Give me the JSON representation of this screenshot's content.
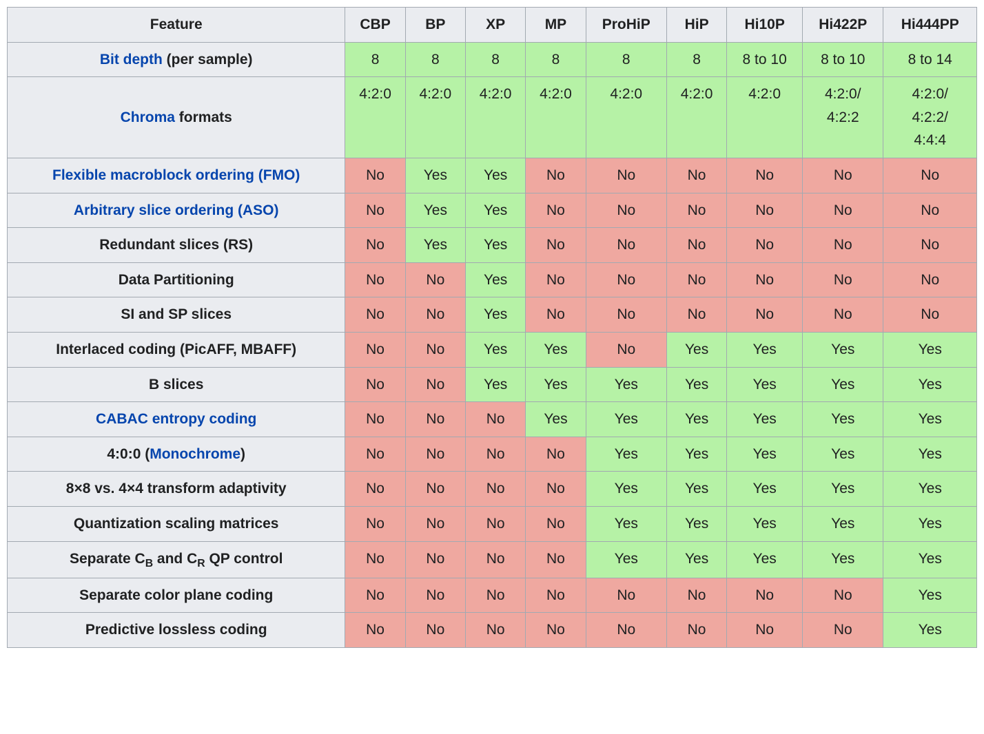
{
  "colors": {
    "header_bg": "#eaecf0",
    "border": "#a2a9b1",
    "green": "#b6f2a6",
    "red": "#efa8a0",
    "link": "#0645ad",
    "text": "#202122",
    "page_bg": "#ffffff"
  },
  "table": {
    "type": "table",
    "columns": [
      "Feature",
      "CBP",
      "BP",
      "XP",
      "MP",
      "ProHiP",
      "HiP",
      "Hi10P",
      "Hi422P",
      "Hi444PP"
    ],
    "cell_classes": {
      "green": "green",
      "red": "red"
    },
    "rows": [
      {
        "feature_parts": [
          {
            "text": "Bit depth",
            "link": true
          },
          {
            "text": " (per sample)",
            "link": false
          }
        ],
        "cells": [
          {
            "text": "8",
            "cls": "green"
          },
          {
            "text": "8",
            "cls": "green"
          },
          {
            "text": "8",
            "cls": "green"
          },
          {
            "text": "8",
            "cls": "green"
          },
          {
            "text": "8",
            "cls": "green"
          },
          {
            "text": "8",
            "cls": "green"
          },
          {
            "text": "8 to 10",
            "cls": "green"
          },
          {
            "text": "8 to 10",
            "cls": "green"
          },
          {
            "text": "8 to 14",
            "cls": "green"
          }
        ]
      },
      {
        "feature_parts": [
          {
            "text": "Chroma",
            "link": true
          },
          {
            "text": " formats",
            "link": false
          }
        ],
        "cells": [
          {
            "text": "4:2:0",
            "cls": "green"
          },
          {
            "text": "4:2:0",
            "cls": "green"
          },
          {
            "text": "4:2:0",
            "cls": "green"
          },
          {
            "text": "4:2:0",
            "cls": "green"
          },
          {
            "text": "4:2:0",
            "cls": "green"
          },
          {
            "text": "4:2:0",
            "cls": "green"
          },
          {
            "text": "4:2:0",
            "cls": "green"
          },
          {
            "text": "4:2:0/\n4:2:2",
            "cls": "green"
          },
          {
            "text": "4:2:0/\n4:2:2/\n4:4:4",
            "cls": "green"
          }
        ]
      },
      {
        "feature_parts": [
          {
            "text": "Flexible macroblock ordering (FMO)",
            "link": true
          }
        ],
        "cells": [
          {
            "text": "No",
            "cls": "red"
          },
          {
            "text": "Yes",
            "cls": "green"
          },
          {
            "text": "Yes",
            "cls": "green"
          },
          {
            "text": "No",
            "cls": "red"
          },
          {
            "text": "No",
            "cls": "red"
          },
          {
            "text": "No",
            "cls": "red"
          },
          {
            "text": "No",
            "cls": "red"
          },
          {
            "text": "No",
            "cls": "red"
          },
          {
            "text": "No",
            "cls": "red"
          }
        ]
      },
      {
        "feature_parts": [
          {
            "text": "Arbitrary slice ordering (ASO)",
            "link": true
          }
        ],
        "cells": [
          {
            "text": "No",
            "cls": "red"
          },
          {
            "text": "Yes",
            "cls": "green"
          },
          {
            "text": "Yes",
            "cls": "green"
          },
          {
            "text": "No",
            "cls": "red"
          },
          {
            "text": "No",
            "cls": "red"
          },
          {
            "text": "No",
            "cls": "red"
          },
          {
            "text": "No",
            "cls": "red"
          },
          {
            "text": "No",
            "cls": "red"
          },
          {
            "text": "No",
            "cls": "red"
          }
        ]
      },
      {
        "feature_parts": [
          {
            "text": "Redundant slices (RS)",
            "link": false
          }
        ],
        "cells": [
          {
            "text": "No",
            "cls": "red"
          },
          {
            "text": "Yes",
            "cls": "green"
          },
          {
            "text": "Yes",
            "cls": "green"
          },
          {
            "text": "No",
            "cls": "red"
          },
          {
            "text": "No",
            "cls": "red"
          },
          {
            "text": "No",
            "cls": "red"
          },
          {
            "text": "No",
            "cls": "red"
          },
          {
            "text": "No",
            "cls": "red"
          },
          {
            "text": "No",
            "cls": "red"
          }
        ]
      },
      {
        "feature_parts": [
          {
            "text": "Data Partitioning",
            "link": false
          }
        ],
        "cells": [
          {
            "text": "No",
            "cls": "red"
          },
          {
            "text": "No",
            "cls": "red"
          },
          {
            "text": "Yes",
            "cls": "green"
          },
          {
            "text": "No",
            "cls": "red"
          },
          {
            "text": "No",
            "cls": "red"
          },
          {
            "text": "No",
            "cls": "red"
          },
          {
            "text": "No",
            "cls": "red"
          },
          {
            "text": "No",
            "cls": "red"
          },
          {
            "text": "No",
            "cls": "red"
          }
        ]
      },
      {
        "feature_parts": [
          {
            "text": "SI and SP slices",
            "link": false
          }
        ],
        "cells": [
          {
            "text": "No",
            "cls": "red"
          },
          {
            "text": "No",
            "cls": "red"
          },
          {
            "text": "Yes",
            "cls": "green"
          },
          {
            "text": "No",
            "cls": "red"
          },
          {
            "text": "No",
            "cls": "red"
          },
          {
            "text": "No",
            "cls": "red"
          },
          {
            "text": "No",
            "cls": "red"
          },
          {
            "text": "No",
            "cls": "red"
          },
          {
            "text": "No",
            "cls": "red"
          }
        ]
      },
      {
        "feature_parts": [
          {
            "text": "Interlaced coding (PicAFF, MBAFF)",
            "link": false
          }
        ],
        "cells": [
          {
            "text": "No",
            "cls": "red"
          },
          {
            "text": "No",
            "cls": "red"
          },
          {
            "text": "Yes",
            "cls": "green"
          },
          {
            "text": "Yes",
            "cls": "green"
          },
          {
            "text": "No",
            "cls": "red"
          },
          {
            "text": "Yes",
            "cls": "green"
          },
          {
            "text": "Yes",
            "cls": "green"
          },
          {
            "text": "Yes",
            "cls": "green"
          },
          {
            "text": "Yes",
            "cls": "green"
          }
        ]
      },
      {
        "feature_parts": [
          {
            "text": "B slices",
            "link": false
          }
        ],
        "cells": [
          {
            "text": "No",
            "cls": "red"
          },
          {
            "text": "No",
            "cls": "red"
          },
          {
            "text": "Yes",
            "cls": "green"
          },
          {
            "text": "Yes",
            "cls": "green"
          },
          {
            "text": "Yes",
            "cls": "green"
          },
          {
            "text": "Yes",
            "cls": "green"
          },
          {
            "text": "Yes",
            "cls": "green"
          },
          {
            "text": "Yes",
            "cls": "green"
          },
          {
            "text": "Yes",
            "cls": "green"
          }
        ]
      },
      {
        "feature_parts": [
          {
            "text": "CABAC entropy coding",
            "link": true
          }
        ],
        "cells": [
          {
            "text": "No",
            "cls": "red"
          },
          {
            "text": "No",
            "cls": "red"
          },
          {
            "text": "No",
            "cls": "red"
          },
          {
            "text": "Yes",
            "cls": "green"
          },
          {
            "text": "Yes",
            "cls": "green"
          },
          {
            "text": "Yes",
            "cls": "green"
          },
          {
            "text": "Yes",
            "cls": "green"
          },
          {
            "text": "Yes",
            "cls": "green"
          },
          {
            "text": "Yes",
            "cls": "green"
          }
        ]
      },
      {
        "feature_parts": [
          {
            "text": "4:0:0 (",
            "link": false
          },
          {
            "text": "Monochrome",
            "link": true
          },
          {
            "text": ")",
            "link": false
          }
        ],
        "cells": [
          {
            "text": "No",
            "cls": "red"
          },
          {
            "text": "No",
            "cls": "red"
          },
          {
            "text": "No",
            "cls": "red"
          },
          {
            "text": "No",
            "cls": "red"
          },
          {
            "text": "Yes",
            "cls": "green"
          },
          {
            "text": "Yes",
            "cls": "green"
          },
          {
            "text": "Yes",
            "cls": "green"
          },
          {
            "text": "Yes",
            "cls": "green"
          },
          {
            "text": "Yes",
            "cls": "green"
          }
        ]
      },
      {
        "feature_parts": [
          {
            "text": "8×8 vs. 4×4 transform adaptivity",
            "link": false
          }
        ],
        "cells": [
          {
            "text": "No",
            "cls": "red"
          },
          {
            "text": "No",
            "cls": "red"
          },
          {
            "text": "No",
            "cls": "red"
          },
          {
            "text": "No",
            "cls": "red"
          },
          {
            "text": "Yes",
            "cls": "green"
          },
          {
            "text": "Yes",
            "cls": "green"
          },
          {
            "text": "Yes",
            "cls": "green"
          },
          {
            "text": "Yes",
            "cls": "green"
          },
          {
            "text": "Yes",
            "cls": "green"
          }
        ]
      },
      {
        "feature_parts": [
          {
            "text": "Quantization scaling matrices",
            "link": false
          }
        ],
        "cells": [
          {
            "text": "No",
            "cls": "red"
          },
          {
            "text": "No",
            "cls": "red"
          },
          {
            "text": "No",
            "cls": "red"
          },
          {
            "text": "No",
            "cls": "red"
          },
          {
            "text": "Yes",
            "cls": "green"
          },
          {
            "text": "Yes",
            "cls": "green"
          },
          {
            "text": "Yes",
            "cls": "green"
          },
          {
            "text": "Yes",
            "cls": "green"
          },
          {
            "text": "Yes",
            "cls": "green"
          }
        ]
      },
      {
        "feature_html": "Separate C<sub>B</sub> and C<sub>R</sub> QP control",
        "cells": [
          {
            "text": "No",
            "cls": "red"
          },
          {
            "text": "No",
            "cls": "red"
          },
          {
            "text": "No",
            "cls": "red"
          },
          {
            "text": "No",
            "cls": "red"
          },
          {
            "text": "Yes",
            "cls": "green"
          },
          {
            "text": "Yes",
            "cls": "green"
          },
          {
            "text": "Yes",
            "cls": "green"
          },
          {
            "text": "Yes",
            "cls": "green"
          },
          {
            "text": "Yes",
            "cls": "green"
          }
        ]
      },
      {
        "feature_parts": [
          {
            "text": "Separate color plane coding",
            "link": false
          }
        ],
        "cells": [
          {
            "text": "No",
            "cls": "red"
          },
          {
            "text": "No",
            "cls": "red"
          },
          {
            "text": "No",
            "cls": "red"
          },
          {
            "text": "No",
            "cls": "red"
          },
          {
            "text": "No",
            "cls": "red"
          },
          {
            "text": "No",
            "cls": "red"
          },
          {
            "text": "No",
            "cls": "red"
          },
          {
            "text": "No",
            "cls": "red"
          },
          {
            "text": "Yes",
            "cls": "green"
          }
        ]
      },
      {
        "feature_parts": [
          {
            "text": "Predictive lossless coding",
            "link": false
          }
        ],
        "cells": [
          {
            "text": "No",
            "cls": "red"
          },
          {
            "text": "No",
            "cls": "red"
          },
          {
            "text": "No",
            "cls": "red"
          },
          {
            "text": "No",
            "cls": "red"
          },
          {
            "text": "No",
            "cls": "red"
          },
          {
            "text": "No",
            "cls": "red"
          },
          {
            "text": "No",
            "cls": "red"
          },
          {
            "text": "No",
            "cls": "red"
          },
          {
            "text": "Yes",
            "cls": "green"
          }
        ]
      }
    ]
  }
}
